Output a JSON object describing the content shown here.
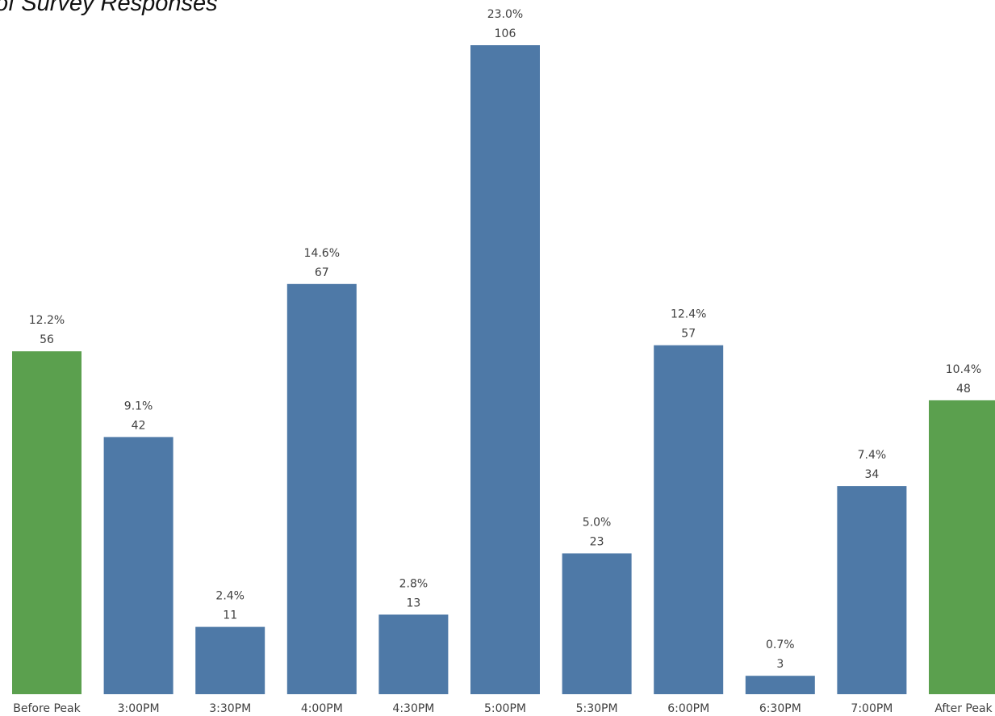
{
  "chart_data": {
    "type": "bar",
    "title": "of Survey Responses",
    "categories": [
      "Before Peak",
      "3:00PM",
      "3:30PM",
      "4:00PM",
      "4:30PM",
      "5:00PM",
      "5:30PM",
      "6:00PM",
      "6:30PM",
      "7:00PM",
      "After Peak"
    ],
    "values": [
      56,
      42,
      11,
      67,
      13,
      106,
      23,
      57,
      3,
      34,
      48
    ],
    "percent_labels": [
      "12.2%",
      "9.1%",
      "2.4%",
      "14.6%",
      "2.8%",
      "23.0%",
      "5.0%",
      "12.4%",
      "0.7%",
      "7.4%",
      "10.4%"
    ],
    "bar_colors": [
      "#5ba04e",
      "#4e79a7",
      "#4e79a7",
      "#4e79a7",
      "#4e79a7",
      "#4e79a7",
      "#4e79a7",
      "#4e79a7",
      "#4e79a7",
      "#4e79a7",
      "#5ba04e"
    ],
    "ylim": [
      0,
      106
    ],
    "grid": false,
    "legend": "none"
  }
}
